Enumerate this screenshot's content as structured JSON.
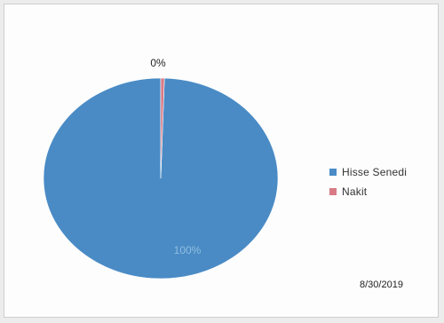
{
  "chart_data": {
    "type": "pie",
    "categories": [
      "Hisse Senedi",
      "Nakit"
    ],
    "values": [
      99.5,
      0.5
    ],
    "data_labels": [
      "100%",
      "0%"
    ],
    "colors": [
      "#4a8bc5",
      "#d97a86"
    ],
    "legend_position": "right"
  },
  "footer": {
    "date": "8/30/2019"
  }
}
